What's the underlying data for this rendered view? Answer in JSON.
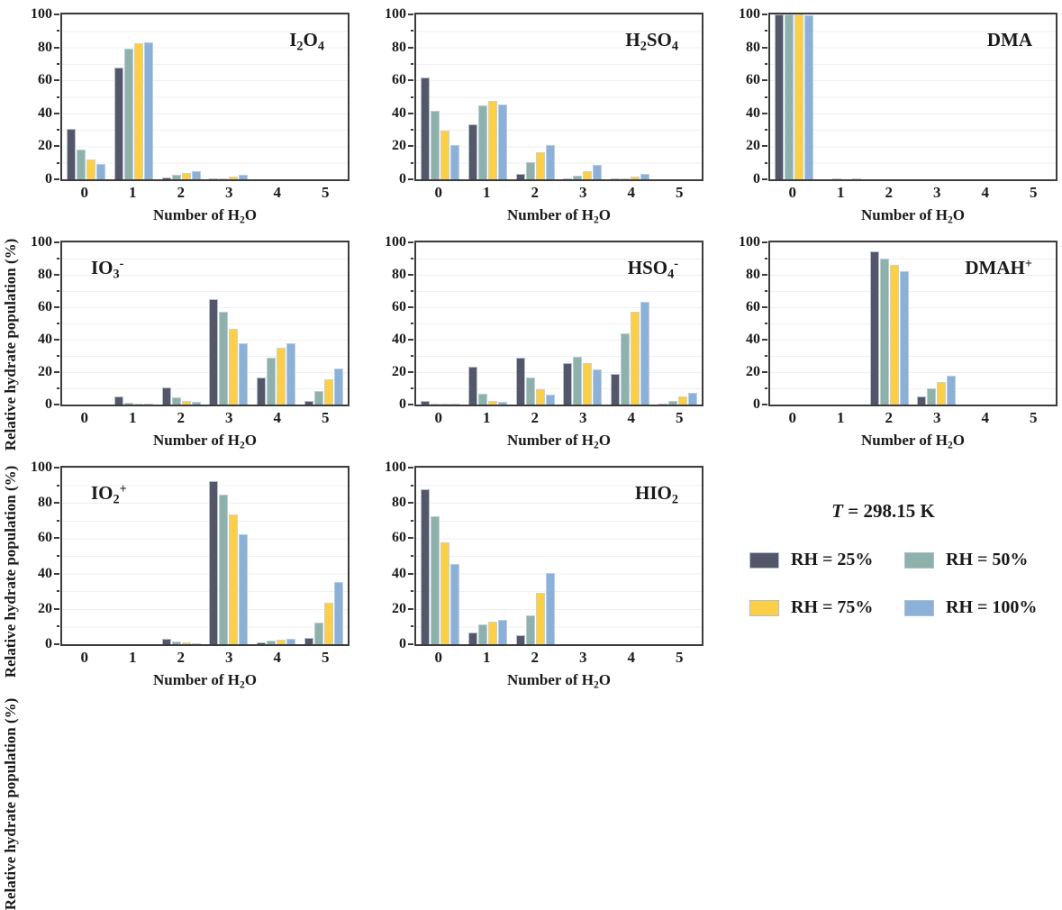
{
  "figure": {
    "legend": {
      "title_symbol": "T",
      "title_rest": " = 298.15 K"
    }
  },
  "chart_data": {
    "type": "bar",
    "categories": [
      "0",
      "1",
      "2",
      "3",
      "4",
      "5"
    ],
    "xlabel": "Number of H_2O",
    "ylabel": "Relative hydrate population (%)",
    "ylim": [
      0,
      100
    ],
    "yticks": [
      0,
      20,
      40,
      60,
      80,
      100
    ],
    "ytick_minor_step": 10,
    "grid": "horizontal, every 10",
    "legend_position": "bottom-right cell",
    "series": [
      {
        "name": "RH = 25%",
        "color": "#54566A"
      },
      {
        "name": "RH = 50%",
        "color": "#8FB1AB"
      },
      {
        "name": "RH = 75%",
        "color": "#FCCF47"
      },
      {
        "name": "RH = 100%",
        "color": "#8BB1D9"
      }
    ],
    "panels": [
      {
        "title": "I_2O_4",
        "title_pos": "tr",
        "values": [
          [
            30.5,
            68,
            1,
            0.5,
            0,
            0
          ],
          [
            18,
            79,
            2.5,
            0.7,
            0,
            0
          ],
          [
            12,
            82.5,
            4,
            1.5,
            0,
            0
          ],
          [
            9.5,
            83,
            5,
            2.5,
            0,
            0
          ]
        ]
      },
      {
        "title": "H_2SO_4",
        "title_pos": "tr",
        "values": [
          [
            62,
            33.5,
            3.5,
            0.3,
            0.3,
            0
          ],
          [
            41.5,
            45,
            10.5,
            2,
            0.5,
            0
          ],
          [
            29.5,
            47.5,
            16.5,
            5,
            1.5,
            0
          ],
          [
            21,
            45.5,
            21,
            8.5,
            3.5,
            0
          ]
        ]
      },
      {
        "title": "DMA",
        "title_pos": "tr",
        "values": [
          [
            100,
            0,
            0,
            0,
            0,
            0
          ],
          [
            100,
            0.2,
            0,
            0,
            0,
            0
          ],
          [
            100,
            0,
            0,
            0,
            0,
            0
          ],
          [
            99.5,
            0.5,
            0,
            0,
            0,
            0
          ]
        ]
      },
      {
        "title": "IO_3^-",
        "title_pos": "tl",
        "values": [
          [
            0,
            5,
            10.5,
            65,
            16.5,
            2.5
          ],
          [
            0,
            1,
            4.5,
            57,
            29,
            8.5
          ],
          [
            0,
            0.3,
            2.5,
            46.5,
            35,
            15.5
          ],
          [
            0,
            0.3,
            1.5,
            38,
            38,
            22
          ]
        ]
      },
      {
        "title": "HSO_4^-",
        "title_pos": "tr",
        "values": [
          [
            2.5,
            23.5,
            29,
            25.5,
            19,
            0.5
          ],
          [
            0.2,
            6.5,
            16.5,
            29.5,
            44,
            2.5
          ],
          [
            0.1,
            2.5,
            9.5,
            25.5,
            57,
            5
          ],
          [
            0.1,
            1.5,
            6,
            21.5,
            63.5,
            7.5
          ]
        ]
      },
      {
        "title": "DMAH^+",
        "title_pos": "tr",
        "values": [
          [
            0,
            0,
            94.5,
            5,
            0,
            0
          ],
          [
            0,
            0,
            90,
            10,
            0,
            0
          ],
          [
            0,
            0,
            86,
            14,
            0,
            0
          ],
          [
            0,
            0,
            82,
            18,
            0,
            0
          ]
        ]
      },
      {
        "title": "IO_2^+",
        "title_pos": "tl",
        "values": [
          [
            0,
            0,
            3,
            92.5,
            1,
            3.5
          ],
          [
            0,
            0,
            1.5,
            84.5,
            2,
            12
          ],
          [
            0,
            0,
            1,
            73.5,
            2.5,
            23.5
          ],
          [
            0,
            0,
            0.3,
            62,
            3,
            35
          ]
        ]
      },
      {
        "title": "HIO_2",
        "title_pos": "tr",
        "values": [
          [
            88,
            6.5,
            5,
            0,
            0,
            0
          ],
          [
            72.5,
            11,
            16.5,
            0,
            0,
            0
          ],
          [
            57.5,
            13,
            29,
            0,
            0,
            0
          ],
          [
            45.5,
            14,
            40.5,
            0,
            0,
            0
          ]
        ]
      }
    ]
  }
}
